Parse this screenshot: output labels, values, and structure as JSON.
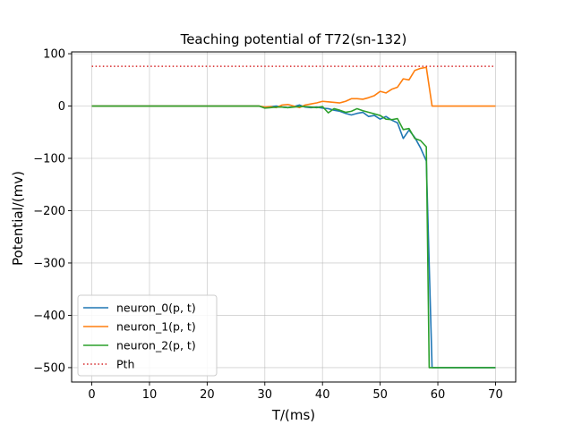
{
  "chart_data": {
    "type": "line",
    "title": "Teaching potential of T72(sn-132)",
    "xlabel": "T/(ms)",
    "ylabel": "Potential/(mv)",
    "xlim": [
      -3.5,
      73.5
    ],
    "ylim": [
      -527.5,
      103.5
    ],
    "xticks": [
      0,
      10,
      20,
      30,
      40,
      50,
      60,
      70
    ],
    "yticks": [
      100,
      0,
      -100,
      -200,
      -300,
      -400,
      -500
    ],
    "xtick_labels": [
      "0",
      "10",
      "20",
      "30",
      "40",
      "50",
      "60",
      "70"
    ],
    "ytick_labels": [
      "100",
      "0",
      "−100",
      "−200",
      "−300",
      "−400",
      "−500"
    ],
    "grid": true,
    "legend": {
      "position": "lower-left"
    },
    "series": [
      {
        "name": "neuron_0(p, t)",
        "color": "#1f77b4",
        "style": "solid",
        "points": [
          [
            0,
            0
          ],
          [
            29,
            0
          ],
          [
            30,
            -3
          ],
          [
            31,
            -1
          ],
          [
            32,
            0
          ],
          [
            33,
            -2
          ],
          [
            34,
            -3
          ],
          [
            35,
            -1
          ],
          [
            36,
            2
          ],
          [
            37,
            -2
          ],
          [
            38,
            -3
          ],
          [
            39,
            -2
          ],
          [
            40,
            -4
          ],
          [
            41,
            -5
          ],
          [
            42,
            -8
          ],
          [
            43,
            -10
          ],
          [
            44,
            -14
          ],
          [
            45,
            -17
          ],
          [
            46,
            -14
          ],
          [
            47,
            -12
          ],
          [
            48,
            -20
          ],
          [
            49,
            -18
          ],
          [
            50,
            -25
          ],
          [
            51,
            -20
          ],
          [
            52,
            -27
          ],
          [
            53,
            -32
          ],
          [
            54,
            -62
          ],
          [
            55,
            -46
          ],
          [
            56,
            -60
          ],
          [
            57,
            -80
          ],
          [
            58,
            -105
          ],
          [
            59,
            -500
          ],
          [
            70,
            -500
          ]
        ]
      },
      {
        "name": "neuron_1(p, t)",
        "color": "#ff7f0e",
        "style": "solid",
        "points": [
          [
            0,
            0
          ],
          [
            29,
            0
          ],
          [
            30,
            -2
          ],
          [
            31,
            -1
          ],
          [
            32,
            -3
          ],
          [
            33,
            2
          ],
          [
            34,
            3
          ],
          [
            35,
            0
          ],
          [
            36,
            -3
          ],
          [
            37,
            2
          ],
          [
            38,
            4
          ],
          [
            39,
            6
          ],
          [
            40,
            9
          ],
          [
            41,
            8
          ],
          [
            42,
            7
          ],
          [
            43,
            6
          ],
          [
            44,
            9
          ],
          [
            45,
            14
          ],
          [
            46,
            14
          ],
          [
            47,
            13
          ],
          [
            48,
            16
          ],
          [
            49,
            20
          ],
          [
            50,
            28
          ],
          [
            51,
            25
          ],
          [
            52,
            32
          ],
          [
            53,
            36
          ],
          [
            54,
            52
          ],
          [
            55,
            50
          ],
          [
            56,
            68
          ],
          [
            57,
            72
          ],
          [
            58,
            74
          ],
          [
            59,
            0
          ],
          [
            70,
            0
          ]
        ]
      },
      {
        "name": "neuron_2(p, t)",
        "color": "#2ca02c",
        "style": "solid",
        "points": [
          [
            0,
            0
          ],
          [
            29,
            0
          ],
          [
            30,
            -4
          ],
          [
            31,
            -3
          ],
          [
            32,
            -2
          ],
          [
            33,
            -2
          ],
          [
            34,
            -3
          ],
          [
            35,
            -2
          ],
          [
            36,
            -1
          ],
          [
            37,
            -1
          ],
          [
            38,
            -2
          ],
          [
            39,
            -3
          ],
          [
            40,
            -1
          ],
          [
            41,
            -13
          ],
          [
            42,
            -5
          ],
          [
            43,
            -8
          ],
          [
            44,
            -12
          ],
          [
            45,
            -10
          ],
          [
            46,
            -5
          ],
          [
            47,
            -9
          ],
          [
            48,
            -12
          ],
          [
            49,
            -15
          ],
          [
            50,
            -18
          ],
          [
            51,
            -25
          ],
          [
            52,
            -26
          ],
          [
            53,
            -24
          ],
          [
            54,
            -45
          ],
          [
            55,
            -43
          ],
          [
            56,
            -62
          ],
          [
            57,
            -66
          ],
          [
            58,
            -78
          ],
          [
            58.5,
            -500
          ],
          [
            70,
            -500
          ]
        ]
      },
      {
        "name": "Pth",
        "color": "#d62728",
        "style": "dotted",
        "points": [
          [
            0,
            76
          ],
          [
            70,
            76
          ]
        ]
      }
    ]
  }
}
